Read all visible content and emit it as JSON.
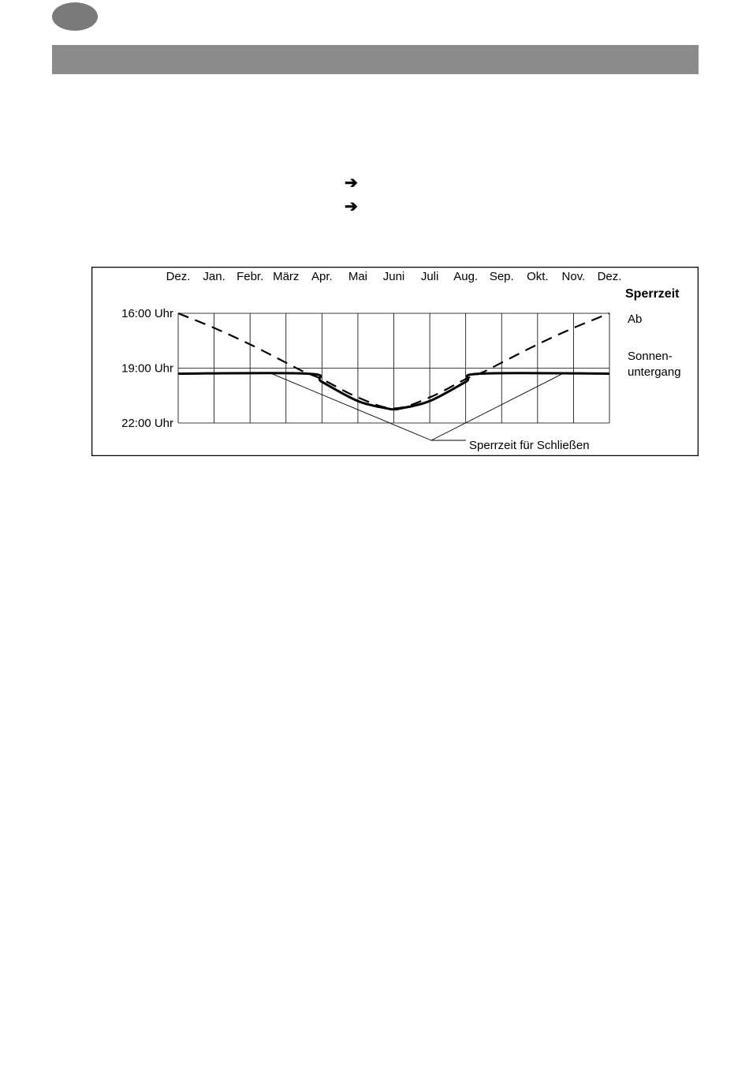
{
  "page": {
    "header_bar_color": "#8b8b8b",
    "language_badge_color": "#7a7a7a",
    "arrow_icon": "arrow-right-icon",
    "arrow_glyph": "➔"
  },
  "chart_data": {
    "type": "line",
    "title": "",
    "categories": [
      "Dez.",
      "Jan.",
      "Febr.",
      "März",
      "Apr.",
      "Mai",
      "Juni",
      "Juli",
      "Aug.",
      "Sep.",
      "Okt.",
      "Nov.",
      "Dez."
    ],
    "y_tick_labels": [
      "16:00 Uhr",
      "19:00 Uhr",
      "22:00 Uhr"
    ],
    "y_ticks_hours": [
      16,
      19,
      22
    ],
    "ylim": [
      16,
      22
    ],
    "y_inverted": true,
    "grid": true,
    "legend_title": "Sperrzeit",
    "side_labels": {
      "ab": "Ab",
      "sunset_line1": "Sonnen-",
      "sunset_line2": "untergang"
    },
    "annotation": "Sperrzeit für Schließen",
    "series": [
      {
        "style": "dashed",
        "x_index": [
          0,
          1,
          2,
          3,
          3.5,
          4,
          5,
          6,
          7,
          8,
          8.5,
          9,
          10,
          11,
          12
        ],
        "y_hours": [
          16.0,
          16.8,
          17.7,
          18.7,
          19.2,
          19.6,
          20.6,
          21.2,
          20.6,
          19.6,
          19.2,
          18.7,
          17.7,
          16.8,
          16.0
        ]
      },
      {
        "style": "solid-bold",
        "x_index": [
          0,
          3.6,
          4.0,
          5.0,
          5.8,
          6.0,
          6.2,
          7.0,
          8.0,
          8.4,
          12
        ],
        "y_hours": [
          19.3,
          19.3,
          19.75,
          20.8,
          21.2,
          21.25,
          21.2,
          20.8,
          19.75,
          19.3,
          19.3
        ]
      }
    ],
    "annotation_target_x_index": [
      2.6,
      10.7
    ]
  }
}
